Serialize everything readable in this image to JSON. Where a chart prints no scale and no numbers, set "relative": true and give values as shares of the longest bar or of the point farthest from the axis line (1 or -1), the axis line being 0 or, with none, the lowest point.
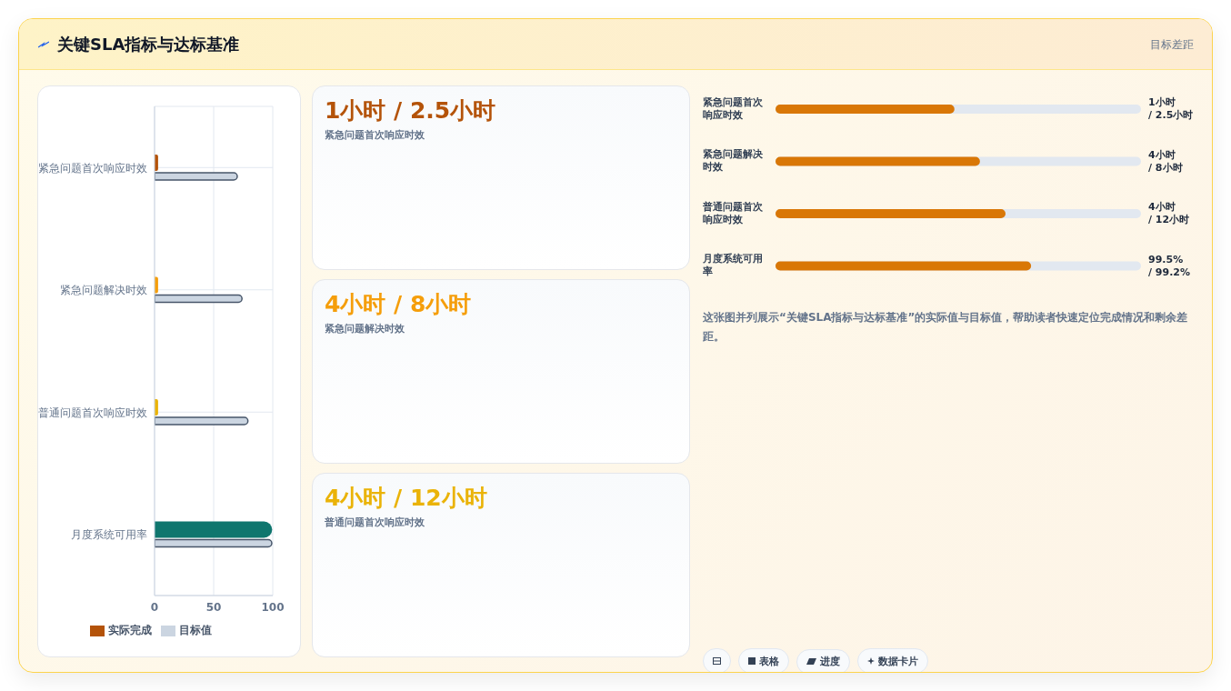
{
  "chart_data": [
    {
      "type": "bar",
      "title": "关键SLA指标与达标基准",
      "annotations": [
        "目标差距"
      ],
      "orientation": "horizontal",
      "categories": [
        "紧急问题首次响应时效",
        "紧急问题解决时效",
        "普通问题首次响应时效",
        "月度系统可用率"
      ],
      "series": [
        {
          "name": "实际完成",
          "color": "#b45309",
          "colors": [
            "#b45309",
            "#f59e0b",
            "#eab308",
            "#0f766e"
          ],
          "values": [
            3,
            3,
            3,
            99.5
          ]
        },
        {
          "name": "目标值",
          "color": "#cbd5e1",
          "values": [
            70,
            74,
            79,
            99.2
          ]
        }
      ],
      "xlim": [
        0,
        100
      ],
      "xticks": [
        0,
        50,
        100
      ],
      "grid": true,
      "legend": "bottom"
    },
    {
      "type": "other",
      "annotations": [
        "1小时 / 2.5小时",
        "紧急问题首次响应时效",
        "4小时 / 8小时",
        "紧急问题解决时效",
        "4小时 / 12小时",
        "普通问题首次响应时效"
      ]
    },
    {
      "type": "bar",
      "orientation": "horizontal",
      "relative": true,
      "categories": [
        "紧急问题首次响应时效",
        "紧急问题解决时效",
        "普通问题首次响应时效",
        "月度系统可用率"
      ],
      "series": [
        {
          "color": "#d97706",
          "values": [
            0.7,
            0.8,
            0.9,
            1
          ]
        }
      ],
      "value_labels": [
        "1小时 / 2.5小时",
        "4小时 / 8小时",
        "4小时 / 12小时",
        "99.5% / 99.2%"
      ],
      "annotations": [
        "这张图并列展示“关键SLA指标与达标基准”的实际值与目标值，帮助读者快速定位完成情况和剩余差距。",
        "表格",
        "进度",
        "数据卡片"
      ]
    }
  ]
}
